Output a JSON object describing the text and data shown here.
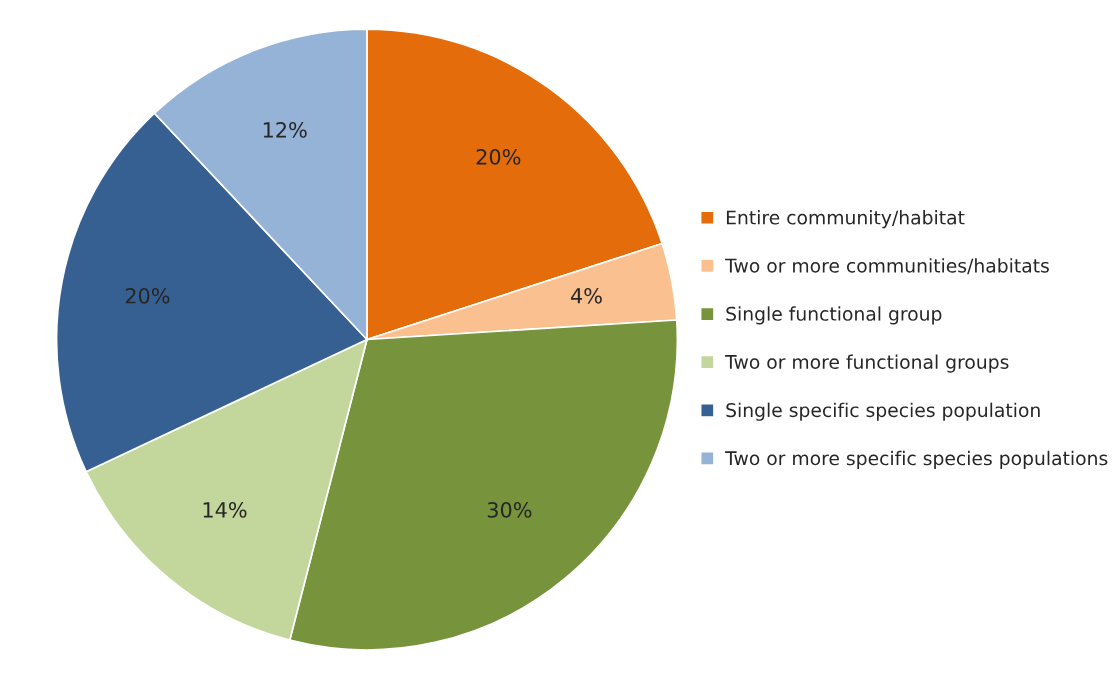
{
  "chart_data": {
    "type": "pie",
    "categories": [
      "Entire community/habitat",
      "Two or more communities/habitats",
      "Single functional group",
      "Two or more functional groups",
      "Single specific species population",
      "Two or more specific species populations"
    ],
    "values": [
      20,
      4,
      30,
      14,
      20,
      12
    ],
    "colors": [
      "#e46c0a",
      "#fac090",
      "#77933c",
      "#c3d69b",
      "#376092",
      "#95b3d7"
    ],
    "value_labels": [
      "20%",
      "4%",
      "30%",
      "14%",
      "20%",
      "12%"
    ],
    "legend": "right"
  }
}
